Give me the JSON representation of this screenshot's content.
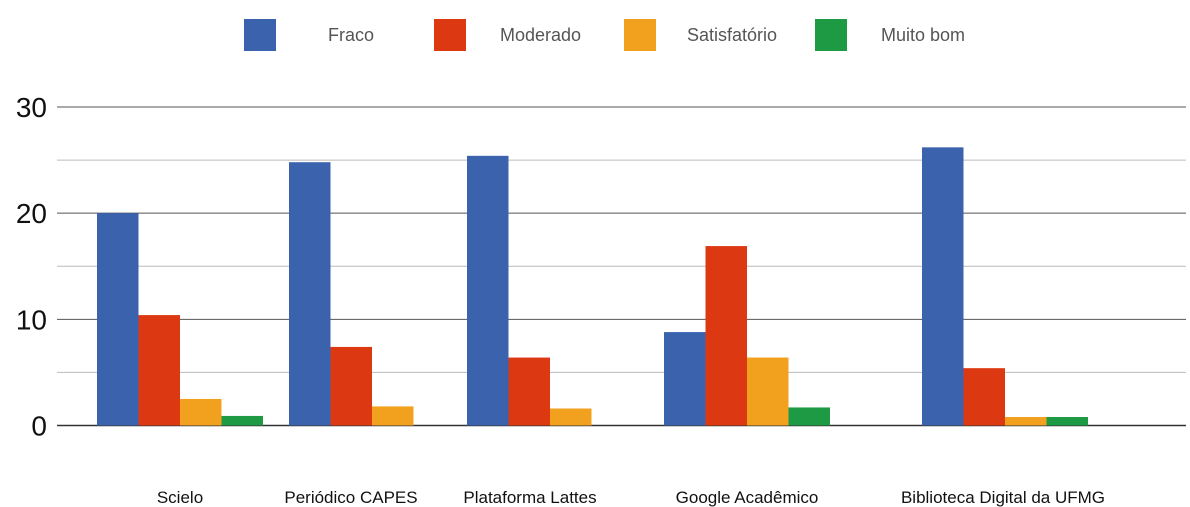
{
  "chart_data": {
    "type": "bar",
    "title": "",
    "xlabel": "",
    "ylabel": "",
    "ylim": [
      0,
      30
    ],
    "yticks": [
      0,
      10,
      20,
      30
    ],
    "grid": true,
    "legend_position": "top",
    "categories": [
      "Scielo",
      "Periódico CAPES",
      "Plataforma Lattes",
      "Google Acadêmico",
      "Biblioteca Digital da UFMG"
    ],
    "series": [
      {
        "name": "Fraco",
        "color": "#3b63ad",
        "values": [
          20,
          24.8,
          25.4,
          8.8,
          26.2
        ]
      },
      {
        "name": "Moderado",
        "color": "#dc3912",
        "values": [
          10.4,
          7.4,
          6.4,
          16.9,
          5.4
        ]
      },
      {
        "name": "Satisfatório",
        "color": "#f2a11f",
        "values": [
          2.5,
          1.8,
          1.6,
          6.4,
          0.8
        ]
      },
      {
        "name": "Muito bom",
        "color": "#1f9a44",
        "values": [
          0.9,
          0,
          0,
          1.7,
          0.8
        ]
      }
    ]
  }
}
